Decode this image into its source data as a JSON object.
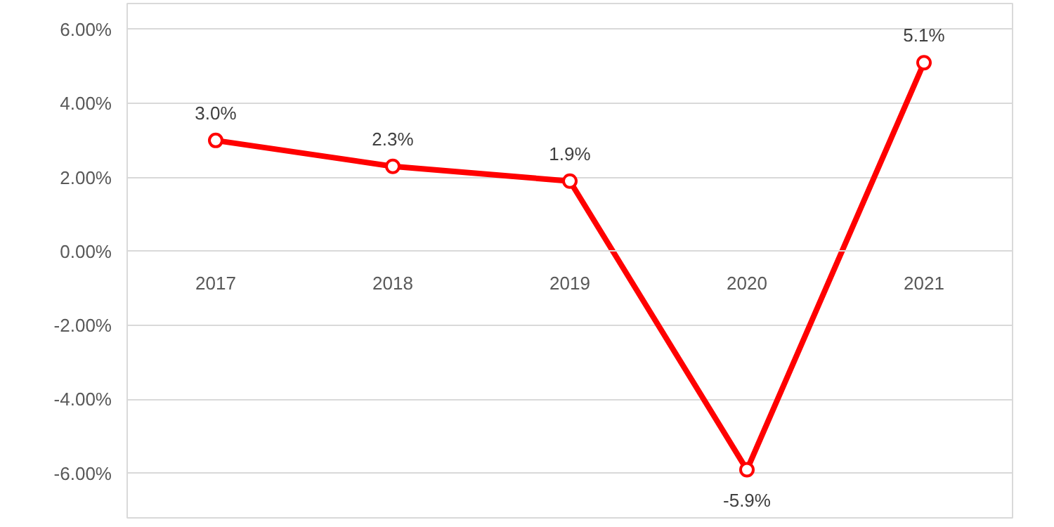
{
  "chart_data": {
    "type": "line",
    "categories": [
      "2017",
      "2018",
      "2019",
      "2020",
      "2021"
    ],
    "series": [
      {
        "color": "#ff0000",
        "values": [
          3.0,
          2.3,
          1.9,
          -5.9,
          5.1
        ],
        "value_labels": [
          "3.0%",
          "2.3%",
          "1.9%",
          "-5.9%",
          "5.1%"
        ]
      }
    ],
    "ylim": [
      -7.2,
      6.7
    ],
    "yticks": [
      {
        "value": 6,
        "label": "6.00%"
      },
      {
        "value": 4,
        "label": "4.00%"
      },
      {
        "value": 2,
        "label": "2.00%"
      },
      {
        "value": 0,
        "label": "0.00%"
      },
      {
        "value": -2,
        "label": "-2.00%"
      },
      {
        "value": -4,
        "label": "-4.00%"
      },
      {
        "value": -6,
        "label": "-6.00%"
      }
    ],
    "grid": "y",
    "marker": "circle",
    "line_style": "solid"
  }
}
